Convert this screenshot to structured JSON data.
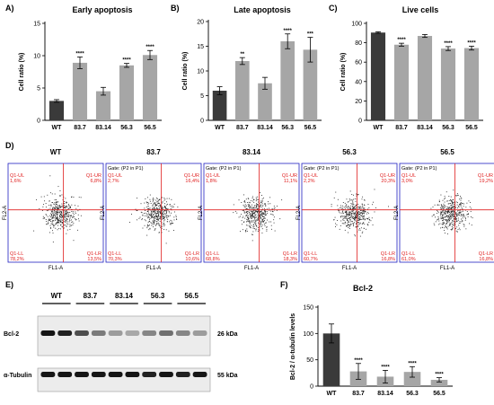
{
  "panels": {
    "A": {
      "letter": "A)",
      "chart_index": 0
    },
    "B": {
      "letter": "B)",
      "chart_index": 1
    },
    "C": {
      "letter": "C)",
      "chart_index": 2
    },
    "D": {
      "letter": "D)"
    },
    "E": {
      "letter": "E)"
    },
    "F": {
      "letter": "F)",
      "chart_index": 3
    }
  },
  "colors": {
    "wt_bar": "#3a3a3a",
    "mutant_bar": "#a6a6a6",
    "gate_line": "#e02020",
    "facs_frame": "#2020c0",
    "quadrant_text": "#e02020"
  },
  "chart_data": [
    {
      "type": "bar",
      "title": "Early apoptosis",
      "ylabel": "Cell ratio (%)",
      "xlabel": "",
      "categories": [
        "WT",
        "83.7",
        "83.14",
        "56.3",
        "56.5"
      ],
      "values": [
        3.0,
        8.9,
        4.5,
        8.5,
        10.1
      ],
      "errors": [
        0.2,
        0.9,
        0.6,
        0.3,
        0.7
      ],
      "significance": [
        "",
        "****",
        "",
        "****",
        "****"
      ],
      "ylim": [
        0,
        15
      ],
      "yticks": [
        "0",
        "5",
        "10",
        "15"
      ]
    },
    {
      "type": "bar",
      "title": "Late apoptosis",
      "ylabel": "Cell ratio (%)",
      "xlabel": "",
      "categories": [
        "WT",
        "83.7",
        "83.14",
        "56.3",
        "56.5"
      ],
      "values": [
        6.0,
        12.0,
        7.5,
        16.0,
        14.3
      ],
      "errors": [
        0.8,
        0.7,
        1.2,
        1.5,
        2.5
      ],
      "significance": [
        "",
        "**",
        "",
        "****",
        "***"
      ],
      "ylim": [
        0,
        20
      ],
      "yticks": [
        "0",
        "5",
        "10",
        "15",
        "20"
      ]
    },
    {
      "type": "bar",
      "title": "Live cells",
      "ylabel": "Cell ratio (%)",
      "xlabel": "",
      "categories": [
        "WT",
        "83.7",
        "83.14",
        "56.3",
        "56.5"
      ],
      "values": [
        90.5,
        78.0,
        87.0,
        74.0,
        74.5
      ],
      "errors": [
        0.8,
        1.5,
        1.5,
        2.0,
        2.0
      ],
      "significance": [
        "",
        "****",
        "",
        "****",
        "****"
      ],
      "ylim": [
        0,
        100
      ],
      "yticks": [
        "0",
        "20",
        "40",
        "60",
        "80",
        "100"
      ]
    },
    {
      "type": "bar",
      "title": "Bcl-2",
      "ylabel": "Bcl-2 / α-tubulin levels",
      "xlabel": "",
      "categories": [
        "WT",
        "83.7",
        "83.14",
        "56.3",
        "56.5"
      ],
      "values": [
        100,
        28,
        18,
        27,
        12
      ],
      "errors": [
        18,
        15,
        12,
        10,
        4
      ],
      "significance": [
        "",
        "****",
        "****",
        "****",
        "****"
      ],
      "ylim": [
        0,
        150
      ],
      "yticks": [
        "0",
        "50",
        "100",
        "150"
      ]
    }
  ],
  "facs": {
    "gate_text": "Gate: (P2 in P1)",
    "x_axis": "FL1-A",
    "y_axis": "FL2-A",
    "plots": [
      {
        "title": "WT",
        "show_gate": false,
        "ul_name": "Q1-UL",
        "ul": "1,6%",
        "ur_name": "Q1-UR",
        "ur": "6,8%",
        "ll_name": "Q1-LL",
        "ll": "78,2%",
        "lr_name": "Q1-LR",
        "lr": "13,5%"
      },
      {
        "title": "83.7",
        "show_gate": true,
        "ul_name": "Q1-UL",
        "ul": "2,7%",
        "ur_name": "Q1-UR",
        "ur": "16,4%",
        "ll_name": "Q1-LL",
        "ll": "70,3%",
        "lr_name": "Q1-LR",
        "lr": "10,6%"
      },
      {
        "title": "83.14",
        "show_gate": true,
        "ul_name": "Q1-UL",
        "ul": "1,8%",
        "ur_name": "Q1-UR",
        "ur": "11,1%",
        "ll_name": "Q1-LL",
        "ll": "68,8%",
        "lr_name": "Q1-LR",
        "lr": "18,3%"
      },
      {
        "title": "56.3",
        "show_gate": true,
        "ul_name": "Q1-UL",
        "ul": "2,2%",
        "ur_name": "Q1-UR",
        "ur": "20,3%",
        "ll_name": "Q1-LL",
        "ll": "60,7%",
        "lr_name": "Q1-LR",
        "lr": "16,8%"
      },
      {
        "title": "56.5",
        "show_gate": true,
        "ul_name": "Q1-UL",
        "ul": "3,0%",
        "ur_name": "Q1-UR",
        "ur": "19,2%",
        "ll_name": "Q1-LL",
        "ll": "61,0%",
        "lr_name": "Q1-LR",
        "lr": "16,8%"
      }
    ]
  },
  "blot": {
    "groups": [
      "WT",
      "83.7",
      "83.14",
      "56.3",
      "56.5"
    ],
    "rows": [
      {
        "label": "Bcl-2",
        "kda": "26 kDa",
        "intensities": [
          0.95,
          0.9,
          0.7,
          0.5,
          0.35,
          0.3,
          0.45,
          0.55,
          0.45,
          0.35
        ]
      },
      {
        "label": "α-Tubulin",
        "kda": "55 kDa",
        "intensities": [
          0.95,
          0.95,
          0.95,
          0.95,
          0.95,
          0.95,
          0.9,
          0.95,
          0.9,
          0.95
        ]
      }
    ]
  }
}
